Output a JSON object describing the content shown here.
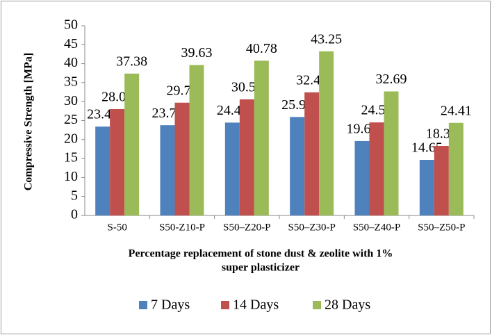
{
  "chart_data": {
    "type": "bar",
    "y_label": "Compressive Strength [MPa]",
    "x_label": [
      "Percentage replacement of stone dust & zeolite with 1%",
      "super plasticizer"
    ],
    "categories": [
      "S-50",
      "S50-Z10-P",
      "S50–Z20-P",
      "S50–Z30-P",
      "S50–Z40-P",
      "S50–Z50-P"
    ],
    "series": [
      {
        "name": "7 Days",
        "color": "#4f81bd",
        "values": [
          23.42,
          23.78,
          24.47,
          25.95,
          19.61,
          14.65
        ]
      },
      {
        "name": "14 Days",
        "color": "#c0504d",
        "values": [
          28.03,
          29.72,
          30.59,
          32.44,
          24.52,
          18.31
        ]
      },
      {
        "name": "28 Days",
        "color": "#9bbb59",
        "values": [
          37.38,
          39.63,
          40.78,
          43.25,
          32.69,
          24.41
        ]
      }
    ],
    "ylim": [
      0,
      50
    ],
    "yticks": [
      0,
      5,
      10,
      15,
      20,
      25,
      30,
      35,
      40,
      45,
      50
    ],
    "grid": false,
    "legend": "bottom"
  }
}
